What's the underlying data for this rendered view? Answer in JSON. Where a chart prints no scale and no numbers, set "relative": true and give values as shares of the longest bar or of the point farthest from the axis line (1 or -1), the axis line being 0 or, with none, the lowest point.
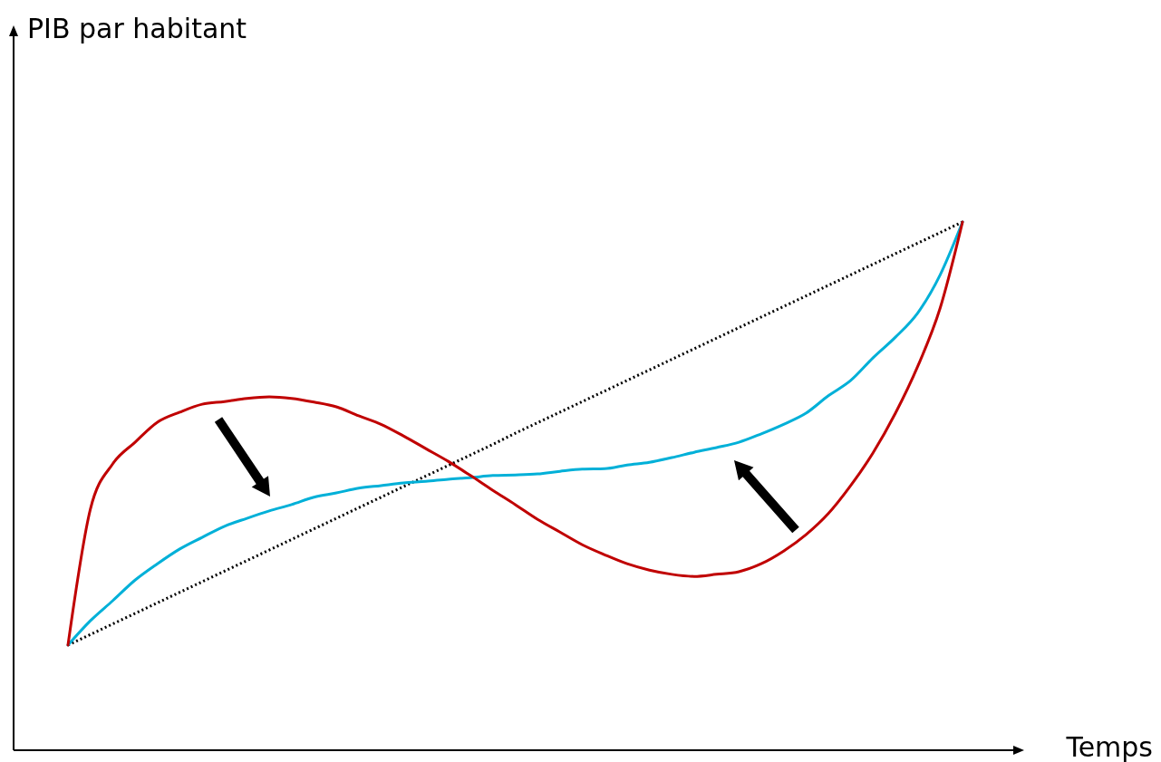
{
  "chart_data": {
    "type": "line",
    "relative": true,
    "xlabel": "Temps",
    "annotations": [
      "PIB par habitant"
    ],
    "categories": [
      null,
      null,
      null,
      null,
      null,
      null,
      null,
      null,
      null,
      null,
      null,
      null,
      null,
      null,
      null,
      null,
      null,
      null,
      null,
      null,
      null,
      null,
      null,
      null,
      null,
      null,
      null,
      null,
      null,
      null,
      null,
      null,
      null,
      null,
      null,
      null,
      null,
      null,
      null,
      null,
      null
    ],
    "series": [
      {
        "color": "#c00000",
        "line_style": "solid",
        "values": [
          0.199,
          0.456,
          0.542,
          0.583,
          0.621,
          0.64,
          0.655,
          0.66,
          0.666,
          0.669,
          0.666,
          0.659,
          0.65,
          0.633,
          0.617,
          0.595,
          0.571,
          0.547,
          0.52,
          0.492,
          0.465,
          0.437,
          0.413,
          0.389,
          0.37,
          0.353,
          0.341,
          0.333,
          0.329,
          0.333,
          0.338,
          0.353,
          0.377,
          0.408,
          0.448,
          0.501,
          0.563,
          0.638,
          0.727,
          0.837,
          1
        ]
      },
      {
        "color": "#00b0d8",
        "line_style": "solid",
        "values": [
          0.199,
          0.245,
          0.283,
          0.322,
          0.353,
          0.381,
          0.403,
          0.424,
          0.439,
          0.453,
          0.465,
          0.479,
          0.487,
          0.496,
          0.501,
          0.506,
          0.509,
          0.513,
          0.516,
          0.52,
          0.521,
          0.523,
          0.528,
          0.532,
          0.533,
          0.54,
          0.545,
          0.554,
          0.564,
          0.573,
          0.583,
          0.599,
          0.617,
          0.638,
          0.671,
          0.7,
          0.743,
          0.782,
          0.828,
          0.9,
          1
        ]
      },
      {
        "color": "#000000",
        "line_style": "dotted",
        "values": [
          0.199,
          0.219,
          0.239,
          0.259,
          0.279,
          0.299,
          0.319,
          0.339,
          0.359,
          0.379,
          0.399,
          0.419,
          0.439,
          0.459,
          0.479,
          0.499,
          0.519,
          0.539,
          0.559,
          0.579,
          0.6,
          0.62,
          0.64,
          0.66,
          0.68,
          0.7,
          0.72,
          0.74,
          0.76,
          0.78,
          0.8,
          0.82,
          0.84,
          0.86,
          0.88,
          0.9,
          0.92,
          0.94,
          0.96,
          0.98,
          1
        ]
      }
    ]
  }
}
